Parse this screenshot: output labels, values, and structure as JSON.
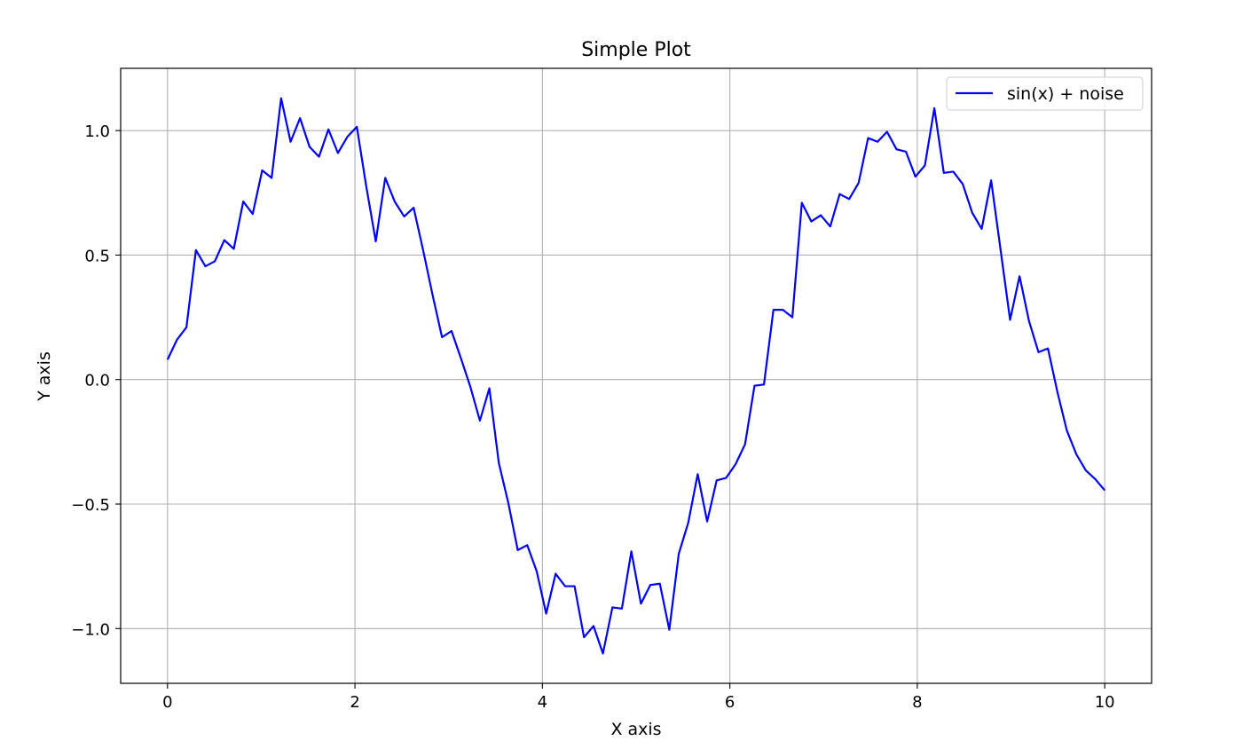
{
  "chart_data": {
    "type": "line",
    "title": "Simple Plot",
    "xlabel": "X axis",
    "ylabel": "Y axis",
    "xlim": [
      -0.5,
      10.5
    ],
    "ylim": [
      -1.22,
      1.25
    ],
    "xticks": [
      0,
      2,
      4,
      6,
      8,
      10
    ],
    "xtick_labels": [
      "0",
      "2",
      "4",
      "6",
      "8",
      "10"
    ],
    "yticks": [
      -1.0,
      -0.5,
      0.0,
      0.5,
      1.0
    ],
    "ytick_labels": [
      "−1.0",
      "−0.5",
      "0.0",
      "0.5",
      "1.0"
    ],
    "grid": true,
    "legend_position": "top-right",
    "series": [
      {
        "name": "sin(x) + noise",
        "color": "#0000ff",
        "x": [
          0.0,
          0.101,
          0.202,
          0.303,
          0.404,
          0.505,
          0.606,
          0.707,
          0.808,
          0.909,
          1.01,
          1.111,
          1.212,
          1.313,
          1.414,
          1.515,
          1.616,
          1.717,
          1.818,
          1.919,
          2.02,
          2.121,
          2.222,
          2.323,
          2.424,
          2.525,
          2.626,
          2.727,
          2.828,
          2.929,
          3.03,
          3.131,
          3.232,
          3.333,
          3.434,
          3.535,
          3.636,
          3.737,
          3.838,
          3.939,
          4.04,
          4.141,
          4.242,
          4.343,
          4.444,
          4.545,
          4.646,
          4.747,
          4.848,
          4.949,
          5.051,
          5.152,
          5.253,
          5.354,
          5.455,
          5.556,
          5.657,
          5.758,
          5.859,
          5.96,
          6.061,
          6.162,
          6.263,
          6.364,
          6.465,
          6.566,
          6.667,
          6.768,
          6.869,
          6.97,
          7.071,
          7.172,
          7.273,
          7.374,
          7.475,
          7.576,
          7.677,
          7.778,
          7.879,
          7.98,
          8.081,
          8.182,
          8.283,
          8.384,
          8.485,
          8.586,
          8.687,
          8.788,
          8.889,
          8.99,
          9.091,
          9.192,
          9.293,
          9.394,
          9.495,
          9.596,
          9.697,
          9.798,
          9.899,
          10.0
        ],
        "y": [
          0.08,
          0.16,
          0.21,
          0.52,
          0.455,
          0.475,
          0.56,
          0.525,
          0.715,
          0.665,
          0.84,
          0.81,
          1.13,
          0.955,
          1.05,
          0.935,
          0.895,
          1.005,
          0.91,
          0.975,
          1.015,
          0.775,
          0.555,
          0.81,
          0.715,
          0.655,
          0.69,
          0.52,
          0.34,
          0.17,
          0.195,
          0.085,
          -0.03,
          -0.165,
          -0.035,
          -0.335,
          -0.495,
          -0.685,
          -0.665,
          -0.77,
          -0.94,
          -0.78,
          -0.83,
          -0.83,
          -1.035,
          -0.99,
          -1.1,
          -0.915,
          -0.92,
          -0.69,
          -0.9,
          -0.825,
          -0.82,
          -1.005,
          -0.7,
          -0.575,
          -0.38,
          -0.57,
          -0.405,
          -0.395,
          -0.34,
          -0.26,
          -0.025,
          -0.02,
          0.28,
          0.28,
          0.25,
          0.71,
          0.635,
          0.66,
          0.615,
          0.745,
          0.725,
          0.79,
          0.97,
          0.955,
          0.995,
          0.925,
          0.915,
          0.815,
          0.86,
          1.09,
          0.83,
          0.835,
          0.785,
          0.67,
          0.605,
          0.8,
          0.52,
          0.24,
          0.415,
          0.235,
          0.11,
          0.125,
          -0.05,
          -0.205,
          -0.3,
          -0.365,
          -0.4,
          -0.445
        ]
      }
    ]
  }
}
